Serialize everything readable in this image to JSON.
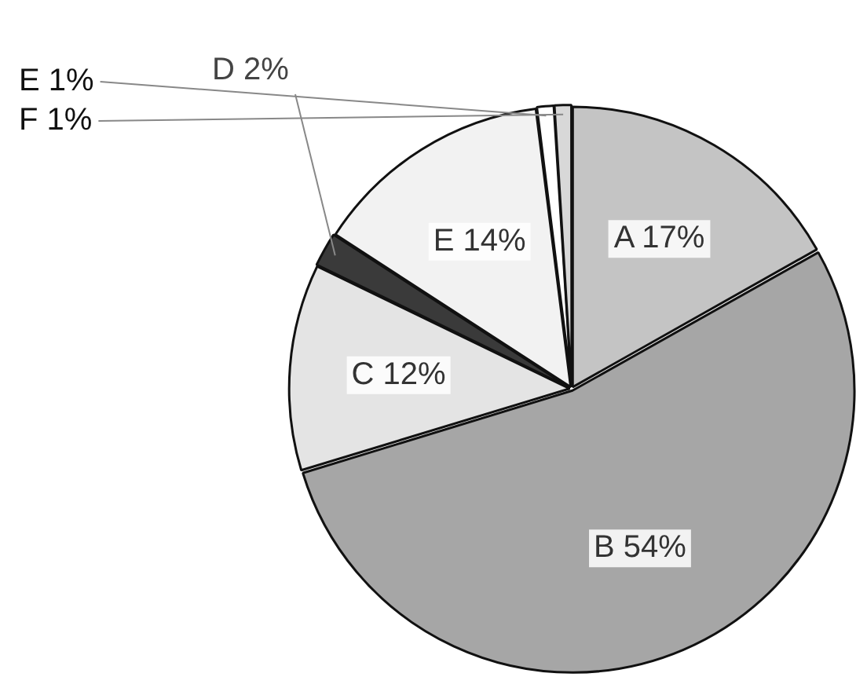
{
  "chart_data": {
    "type": "pie",
    "categories": [
      "A",
      "B",
      "C",
      "D",
      "E",
      "E",
      "F"
    ],
    "values": [
      17,
      54,
      12,
      2,
      14,
      1,
      1
    ],
    "value_labels": [
      "17%",
      "54%",
      "12%",
      "2%",
      "14%",
      "1%",
      "1%"
    ],
    "colors": [
      "#c4c4c4",
      "#a6a6a6",
      "#e4e4e4",
      "#3a3a3a",
      "#f2f2f2",
      "#ffffff",
      "#d8d8d8"
    ],
    "legend": false
  }
}
